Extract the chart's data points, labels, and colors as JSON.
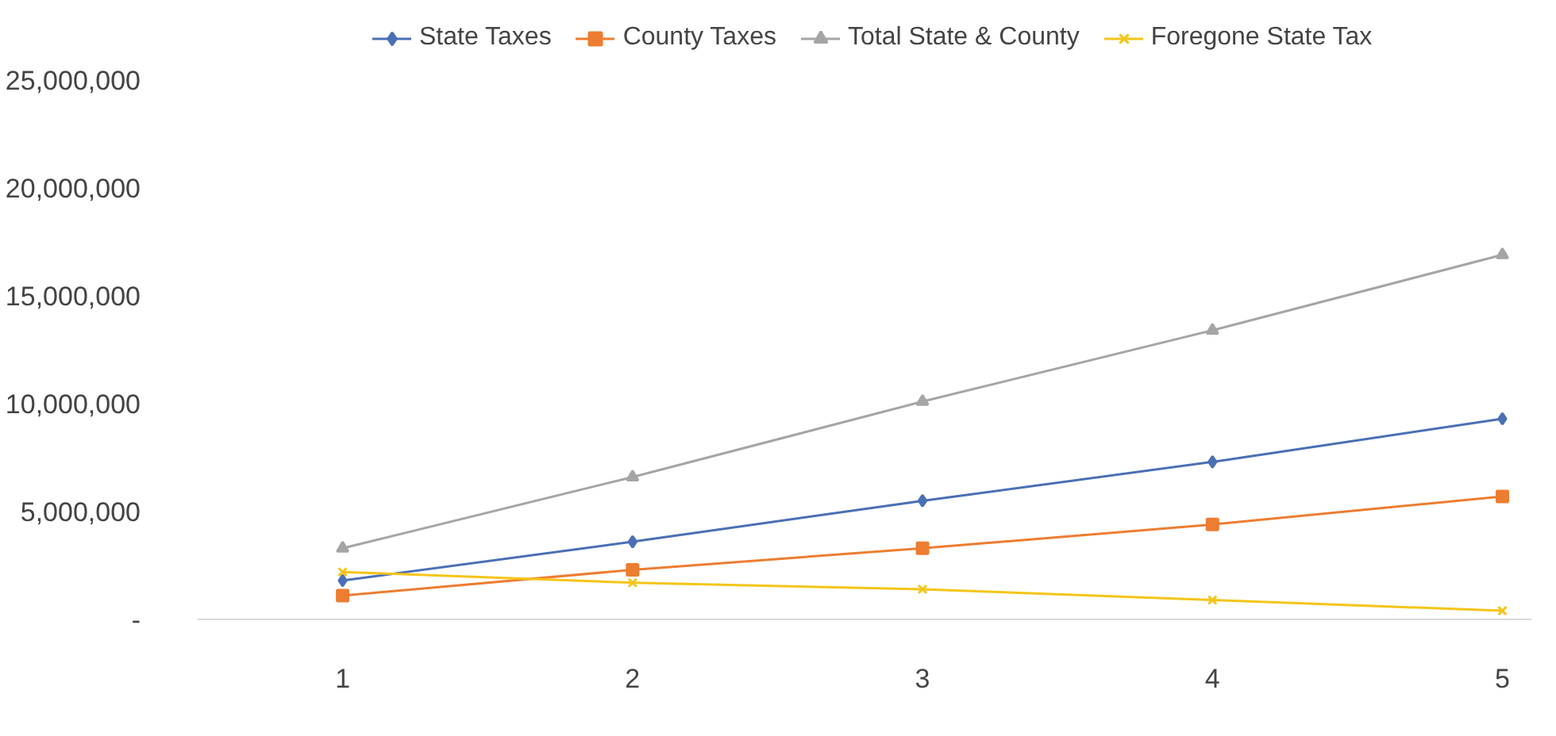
{
  "chart_data": {
    "type": "line",
    "x": [
      1,
      2,
      3,
      4,
      5
    ],
    "series": [
      {
        "name": "State Taxes",
        "color": "#4a6fb5",
        "marker": "diamond",
        "values": [
          1800000,
          3600000,
          5500000,
          7300000,
          9300000
        ]
      },
      {
        "name": "County Taxes",
        "color": "#ed7d31",
        "marker": "square",
        "values": [
          1100000,
          2300000,
          3300000,
          4400000,
          5700000
        ]
      },
      {
        "name": "Total State & County",
        "color": "#a5a5a5",
        "marker": "triangle",
        "values": [
          3300000,
          6600000,
          10100000,
          13400000,
          16900000
        ]
      },
      {
        "name": "Foregone State Tax",
        "color": "#f5c518",
        "marker": "cross",
        "values": [
          2200000,
          1700000,
          1400000,
          900000,
          400000
        ]
      }
    ],
    "xlim": [
      0.5,
      5.1
    ],
    "xticks": [
      1,
      2,
      3,
      4,
      5
    ],
    "ylim": [
      0,
      25000000
    ],
    "yticks": [
      {
        "value": 0,
        "label": "-"
      },
      {
        "value": 5000000,
        "label": "5,000,000"
      },
      {
        "value": 10000000,
        "label": "10,000,000"
      },
      {
        "value": 15000000,
        "label": "15,000,000"
      },
      {
        "value": 20000000,
        "label": "20,000,000"
      },
      {
        "value": 25000000,
        "label": "25,000,000"
      }
    ],
    "grid": false,
    "legend": "top",
    "line_style": "solid"
  }
}
